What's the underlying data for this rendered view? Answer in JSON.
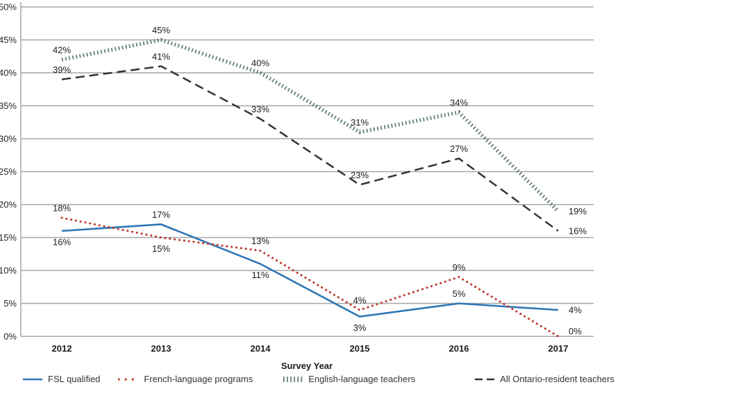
{
  "chart_data": {
    "type": "line",
    "xlabel": "Survey Year",
    "x_labels": [
      "2012",
      "2013",
      "2014",
      "2015",
      "2016",
      "2017"
    ],
    "ytick_labels": [
      "0%",
      "5%",
      "10%",
      "15%",
      "20%",
      "25%",
      "30%",
      "35%",
      "40%",
      "45%",
      "50%"
    ],
    "ylim": [
      0,
      50
    ],
    "ytick_step": 5,
    "grid": true,
    "legend_position": "bottom",
    "series": [
      {
        "name": "FSL qualified",
        "values": [
          16,
          17,
          11,
          3,
          5,
          4
        ],
        "labels": [
          "16%",
          "17%",
          "11%",
          "3%",
          "5%",
          "4%"
        ],
        "label_placement": [
          "below",
          "above",
          "below",
          "below",
          "above",
          "right"
        ],
        "color": "#2e75b6",
        "style": "solid"
      },
      {
        "name": "French-language programs",
        "values": [
          18,
          15,
          13,
          4,
          9,
          0
        ],
        "labels": [
          "18%",
          "15%",
          "13%",
          "4%",
          "9%",
          "0%"
        ],
        "label_placement": [
          "above",
          "below",
          "above",
          "above",
          "above",
          "right"
        ],
        "color": "#c0392b",
        "style": "dotted"
      },
      {
        "name": "English-language teachers",
        "values": [
          42,
          45,
          40,
          31,
          34,
          19
        ],
        "labels": [
          "42%",
          "45%",
          "40%",
          "31%",
          "34%",
          "19%"
        ],
        "label_placement": [
          "above",
          "above",
          "above",
          "above",
          "above",
          "right"
        ],
        "color": "#5b7a74",
        "style": "tick"
      },
      {
        "name": "All Ontario-resident teachers",
        "values": [
          39,
          41,
          33,
          23,
          27,
          16
        ],
        "labels": [
          "39%",
          "41%",
          "33%",
          "23%",
          "27%",
          "16%"
        ],
        "label_placement": [
          "above",
          "above",
          "above",
          "above",
          "above",
          "right"
        ],
        "color": "#303438",
        "style": "dashed"
      }
    ],
    "colors": {
      "gridline": "#a6a6a6",
      "axis_text": "#262626",
      "data_label_text": "#1a1a1a"
    }
  }
}
